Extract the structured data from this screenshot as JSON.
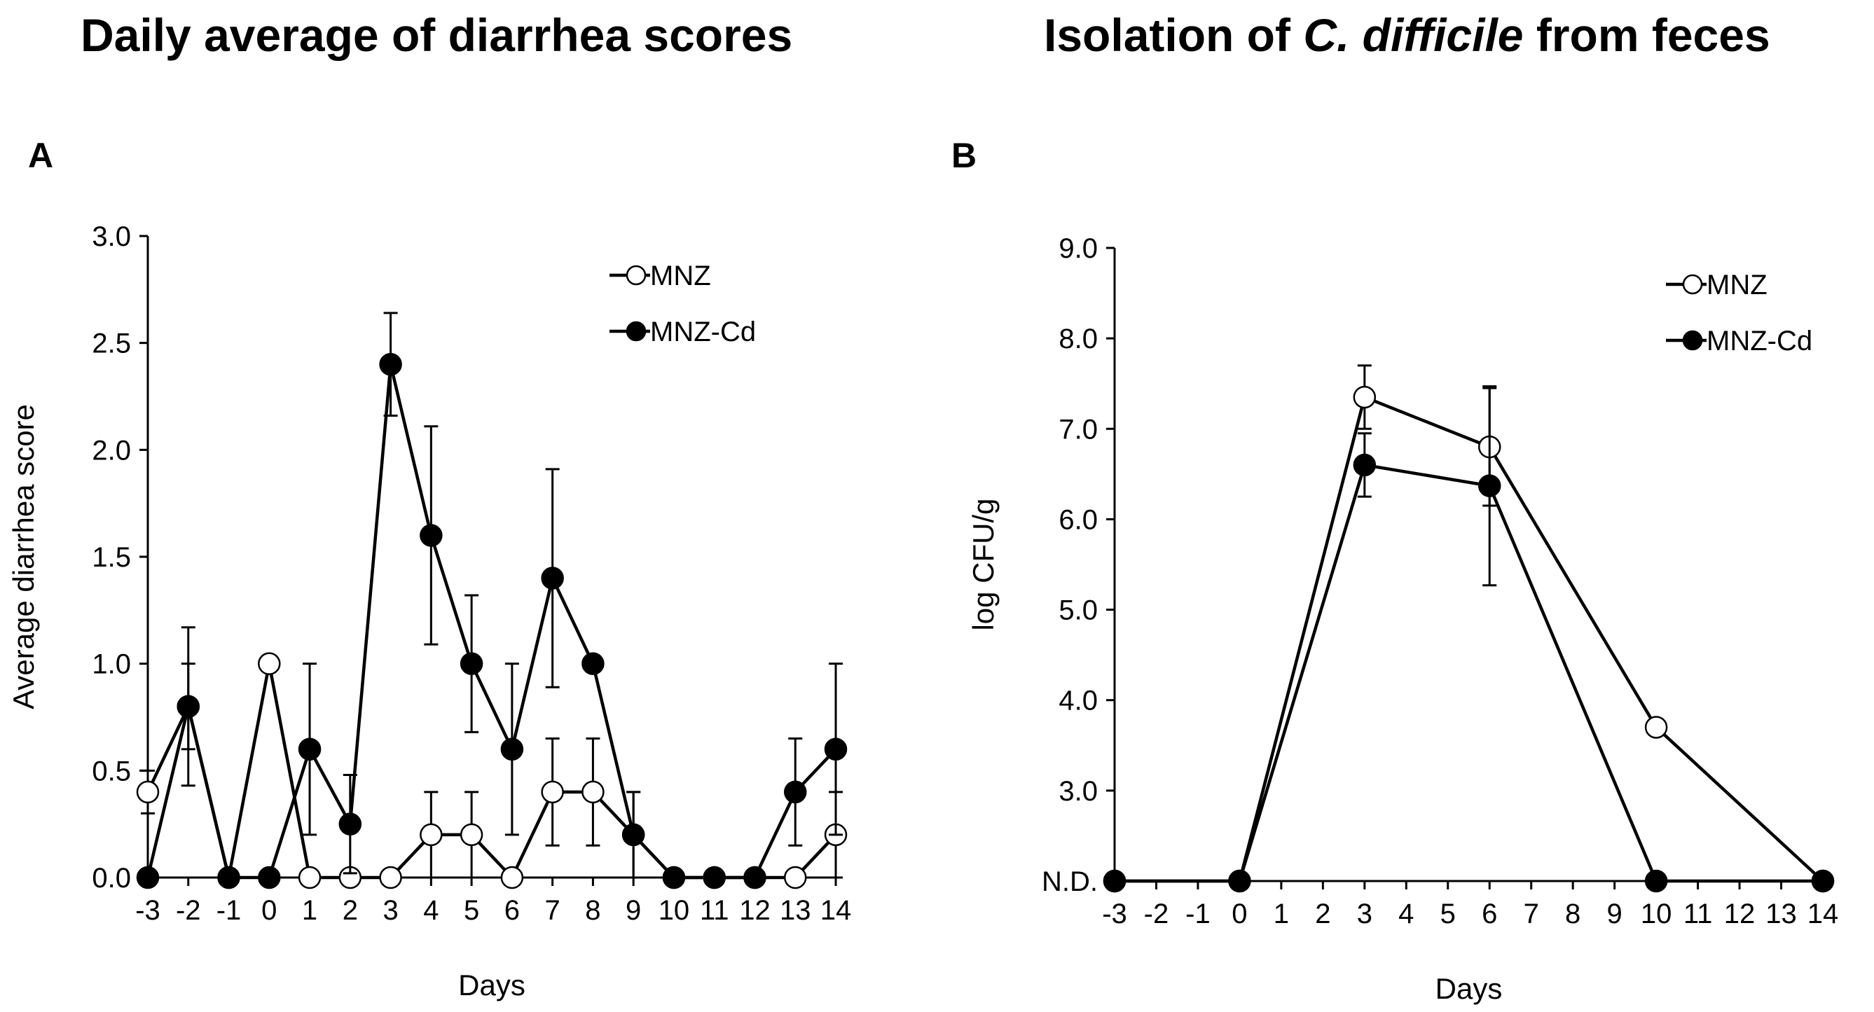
{
  "panel_a": {
    "title": "Daily average of diarrhea scores",
    "letter": "A"
  },
  "panel_b": {
    "title_prefix": "Isolation of ",
    "title_italic": "C. difficile",
    "title_suffix": " from feces",
    "letter": "B"
  },
  "chart_data": [
    {
      "type": "line",
      "title": "Daily average of diarrhea scores",
      "xlabel": "Days",
      "ylabel": "Average diarrhea score",
      "x_ticks": [
        "-3",
        "-2",
        "-1",
        "0",
        "1",
        "2",
        "3",
        "4",
        "5",
        "6",
        "7",
        "8",
        "9",
        "10",
        "11",
        "12",
        "13",
        "14"
      ],
      "y_ticks": [
        "0.0",
        "0.5",
        "1.0",
        "1.5",
        "2.0",
        "2.5",
        "3.0"
      ],
      "ylim": [
        0,
        3
      ],
      "xlim": [
        -3,
        14
      ],
      "legend_position": "top-right",
      "series": [
        {
          "name": "MNZ",
          "marker": "open-circle",
          "x": [
            -3,
            -2,
            -1,
            0,
            1,
            2,
            3,
            4,
            5,
            6,
            7,
            8,
            9,
            10,
            11,
            12,
            13,
            14
          ],
          "y": [
            0.4,
            0.8,
            0,
            1.0,
            0,
            0,
            0,
            0.2,
            0.2,
            0,
            0.4,
            0.4,
            0.2,
            0,
            0,
            0,
            0,
            0.2
          ],
          "err": [
            0.1,
            0.2,
            0,
            0,
            0,
            0,
            0,
            0.2,
            0.2,
            0,
            0.25,
            0.25,
            0.2,
            0,
            0,
            0,
            0,
            0.2
          ]
        },
        {
          "name": "MNZ-Cd",
          "marker": "filled-circle",
          "x": [
            -3,
            -2,
            -1,
            0,
            1,
            2,
            3,
            4,
            5,
            6,
            7,
            8,
            9,
            10,
            11,
            12,
            13,
            14
          ],
          "y": [
            0,
            0.8,
            0,
            0,
            0.6,
            0.25,
            2.4,
            1.6,
            1.0,
            0.6,
            1.4,
            1.0,
            0.2,
            0,
            0,
            0,
            0.4,
            0.6
          ],
          "err": [
            0,
            0.37,
            0,
            0,
            0.4,
            0.23,
            0.24,
            0.51,
            0.32,
            0.4,
            0.51,
            0,
            0.2,
            0,
            0,
            0,
            0.25,
            0.4
          ]
        }
      ]
    },
    {
      "type": "line",
      "title": "Isolation of C. difficile from feces",
      "xlabel": "Days",
      "ylabel": "log CFU/g",
      "x_ticks": [
        "-3",
        "-2",
        "-1",
        "0",
        "1",
        "2",
        "3",
        "4",
        "5",
        "6",
        "7",
        "8",
        "9",
        "10",
        "11",
        "12",
        "13",
        "14"
      ],
      "y_ticks": [
        "N.D.",
        "3.0",
        "4.0",
        "5.0",
        "6.0",
        "7.0",
        "8.0",
        "9.0"
      ],
      "y_tick_values": [
        2,
        3,
        4,
        5,
        6,
        7,
        8,
        9
      ],
      "ylim": [
        2,
        9
      ],
      "xlim": [
        -3,
        14
      ],
      "legend_position": "top-right",
      "series": [
        {
          "name": "MNZ",
          "marker": "open-circle",
          "x": [
            -3,
            0,
            3,
            6,
            10,
            14
          ],
          "y": [
            2,
            2,
            7.35,
            6.8,
            3.7,
            2
          ],
          "err": [
            0,
            0,
            0.35,
            0.65,
            0,
            0
          ]
        },
        {
          "name": "MNZ-Cd",
          "marker": "filled-circle",
          "x": [
            -3,
            0,
            3,
            6,
            10,
            14
          ],
          "y": [
            2,
            2,
            6.6,
            6.37,
            2,
            2
          ],
          "err": [
            0,
            0,
            0.35,
            1.1,
            0,
            0
          ]
        }
      ]
    }
  ]
}
